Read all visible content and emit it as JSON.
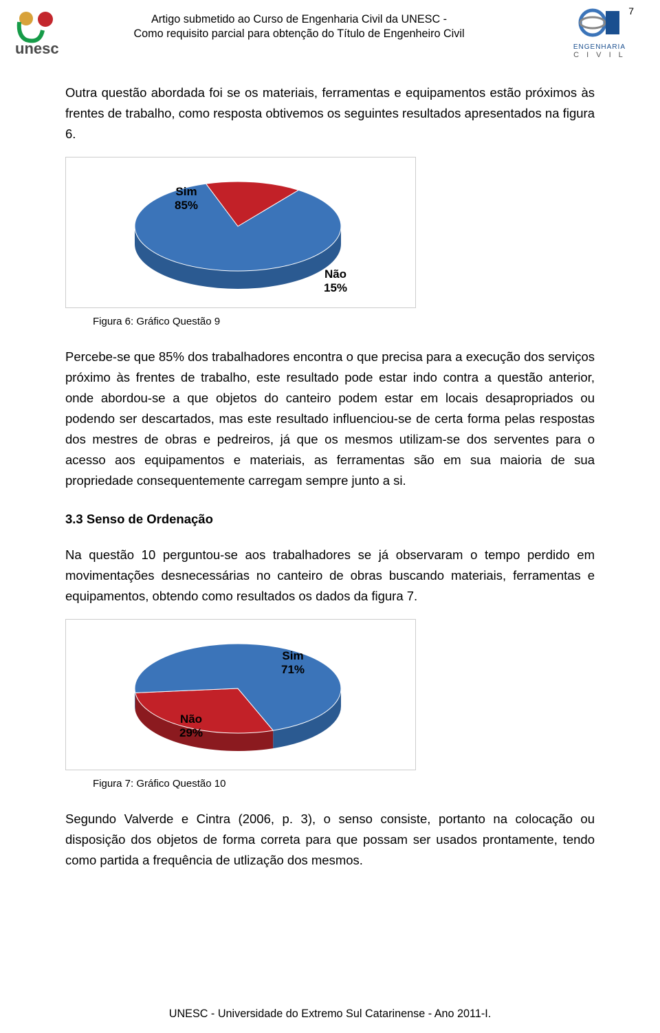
{
  "page_number": "7",
  "header": {
    "line1": "Artigo submetido ao Curso de Engenharia Civil da UNESC -",
    "line2": "Como requisito parcial para obtenção do Título de Engenheiro Civil"
  },
  "logo_left": {
    "text": "unesc"
  },
  "logo_right": {
    "line1": "ENGENHARIA",
    "line2": "C  I  V  I  L"
  },
  "paragraphs": {
    "p1": "Outra questão abordada foi se os materiais, ferramentas e equipamentos estão próximos às frentes de trabalho, como resposta obtivemos os seguintes resultados apresentados na figura 6.",
    "p2": "Percebe-se que 85% dos trabalhadores encontra o que precisa para a execução dos serviços próximo às frentes de trabalho, este resultado pode estar indo contra a questão anterior, onde abordou-se a que objetos do canteiro podem estar em locais desapropriados ou podendo ser descartados, mas este resultado influenciou-se de certa forma pelas respostas dos mestres de obras e pedreiros, já que os mesmos utilizam-se dos serventes para o acesso aos equipamentos e materiais, as ferramentas são em sua maioria de sua propriedade consequentemente carregam sempre junto a si.",
    "p3": "Na questão 10 perguntou-se aos trabalhadores se já observaram o tempo perdido em movimentações desnecessárias no canteiro de obras buscando materiais, ferramentas e equipamentos, obtendo como resultados os dados da figura 7.",
    "p4": "Segundo Valverde e Cintra (2006, p. 3), o senso consiste, portanto na colocação ou disposição dos objetos de forma correta para que possam ser usados prontamente, tendo como partida a frequência de utlização dos mesmos."
  },
  "section_title": "3.3 Senso de Ordenação",
  "figure6": {
    "caption": "Figura 6: Gráfico Questão 9",
    "type": "pie",
    "slices": [
      {
        "label": "Sim",
        "pct_label": "85%",
        "value": 85,
        "color": "#3b74b9"
      },
      {
        "label": "Não",
        "pct_label": "15%",
        "value": 15,
        "color": "#c22128"
      }
    ],
    "label_sim": "Sim",
    "label_sim_pct": "85%",
    "label_nao": "Não",
    "label_nao_pct": "15%",
    "depth_color": "#2b5a91",
    "depth_color_red": "#8b1a1f",
    "background_color": "#ffffff",
    "border_color": "#cccccc",
    "font_weight_label": "bold",
    "font_size_label": 17
  },
  "figure7": {
    "caption": "Figura 7: Gráfico Questão 10",
    "type": "pie",
    "slices": [
      {
        "label": "Não",
        "pct_label": "29%",
        "value": 29,
        "color": "#c22128"
      },
      {
        "label": "Sim",
        "pct_label": "71%",
        "value": 71,
        "color": "#3b74b9"
      }
    ],
    "label_sim": "Sim",
    "label_sim_pct": "71%",
    "label_nao": "Não",
    "label_nao_pct": "29%",
    "depth_color": "#2b5a91",
    "depth_color_red": "#8b1a1f",
    "background_color": "#ffffff",
    "border_color": "#cccccc",
    "font_weight_label": "bold",
    "font_size_label": 17
  },
  "footer": "UNESC - Universidade do Extremo Sul Catarinense - Ano 2011-I."
}
